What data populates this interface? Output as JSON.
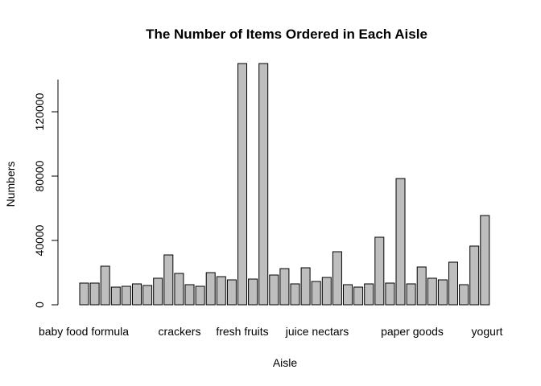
{
  "chart_data": {
    "type": "bar",
    "title": "The Number of Items Ordered in Each Aisle",
    "xlabel": "Aisle",
    "ylabel": "Numbers",
    "ylim": [
      0,
      150000
    ],
    "yticks": [
      0,
      40000,
      80000,
      120000
    ],
    "ytick_labels": [
      "0",
      "40000",
      "80000",
      "120000"
    ],
    "visible_category_labels": [
      "baby food formula",
      "crackers",
      "fresh fruits",
      "juice nectars",
      "paper goods",
      "yogurt"
    ],
    "bar_color": "#bebebe",
    "values": [
      13500,
      13500,
      24000,
      11000,
      11500,
      13000,
      12000,
      16500,
      31000,
      19500,
      12500,
      11500,
      20000,
      17500,
      15500,
      150000,
      16000,
      150000,
      18500,
      22500,
      13000,
      23000,
      14500,
      17000,
      33000,
      12500,
      11000,
      13000,
      42000,
      13500,
      78500,
      13000,
      23500,
      16500,
      15500,
      26500,
      12500,
      36500,
      55500
    ]
  }
}
